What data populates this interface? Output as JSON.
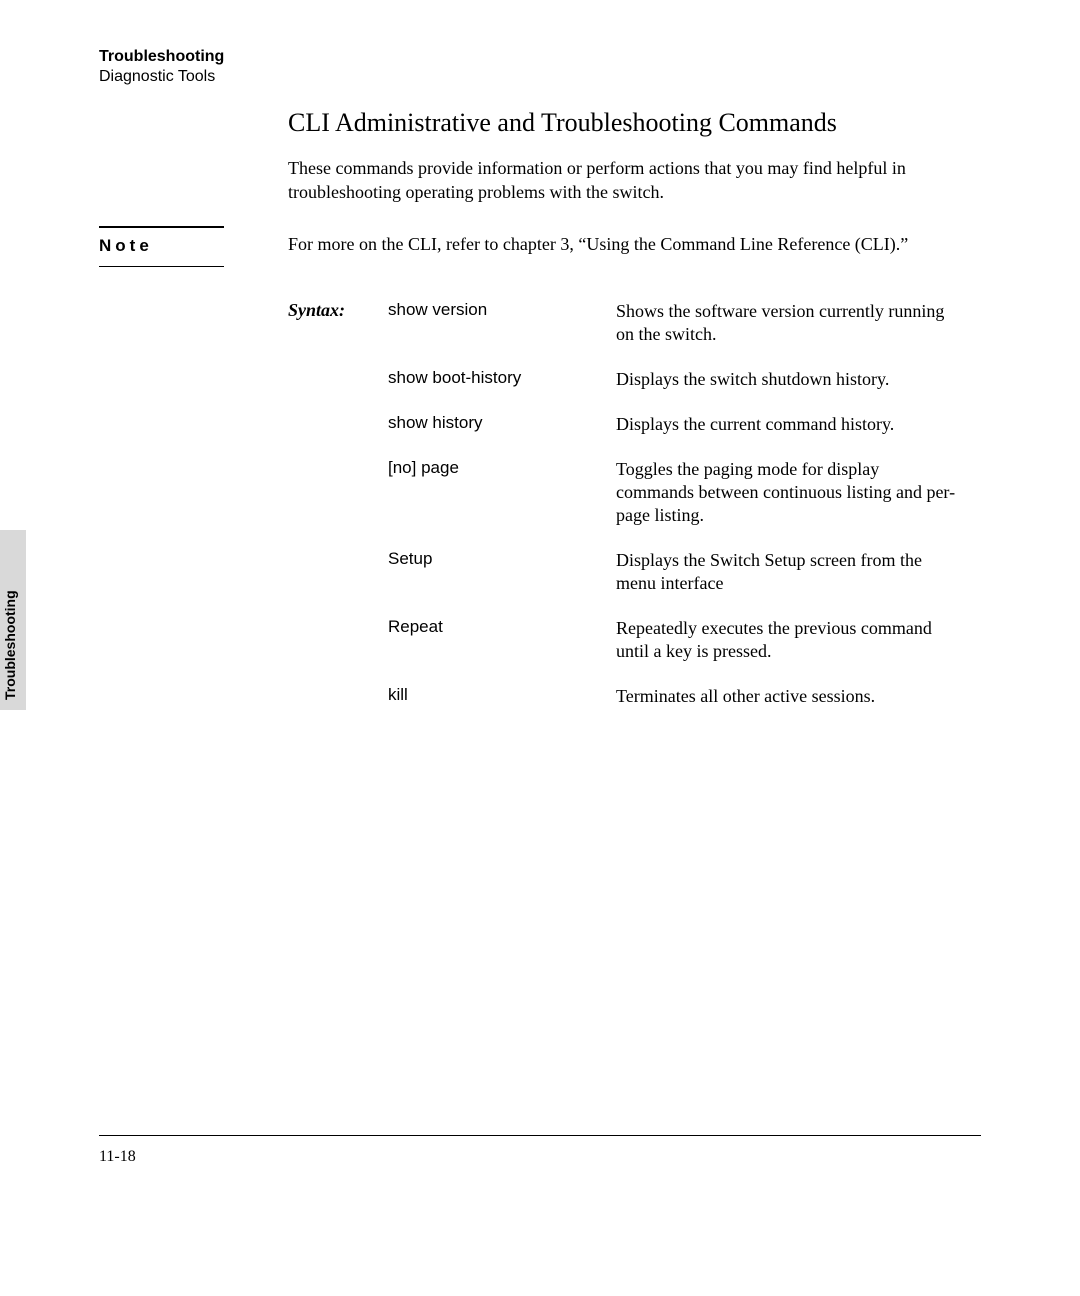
{
  "header": {
    "title": "Troubleshooting",
    "subtitle": "Diagnostic Tools"
  },
  "section_title": "CLI Administrative and Troubleshooting Commands",
  "intro": "These commands provide information or perform actions that you may find helpful in troubleshooting operating problems with the switch.",
  "note": {
    "label": "Note",
    "body": "For more on the CLI, refer to chapter 3, “Using the Command Line Reference (CLI).”"
  },
  "syntax_label": "Syntax:",
  "commands": [
    {
      "cmd": "show version",
      "desc": "Shows the software version currently running on the switch."
    },
    {
      "cmd": "show boot-history",
      "desc": "Displays the switch shutdown history."
    },
    {
      "cmd": "show history",
      "desc": "Displays the current command history."
    },
    {
      "cmd": "[no] page",
      "desc": "Toggles the paging mode for display commands between continuous listing and per-page listing."
    },
    {
      "cmd": "Setup",
      "desc": "Displays the Switch Setup screen from the menu interface"
    },
    {
      "cmd": "Repeat",
      "desc": "Repeatedly executes the previous command until a key is pressed."
    },
    {
      "cmd": "kill",
      "desc": "Terminates all other active sessions."
    }
  ],
  "side_tab": "Troubleshooting",
  "page_number": "11-18",
  "colors": {
    "background": "#ffffff",
    "text": "#000000",
    "side_tab_bg": "#d9d9d9"
  }
}
